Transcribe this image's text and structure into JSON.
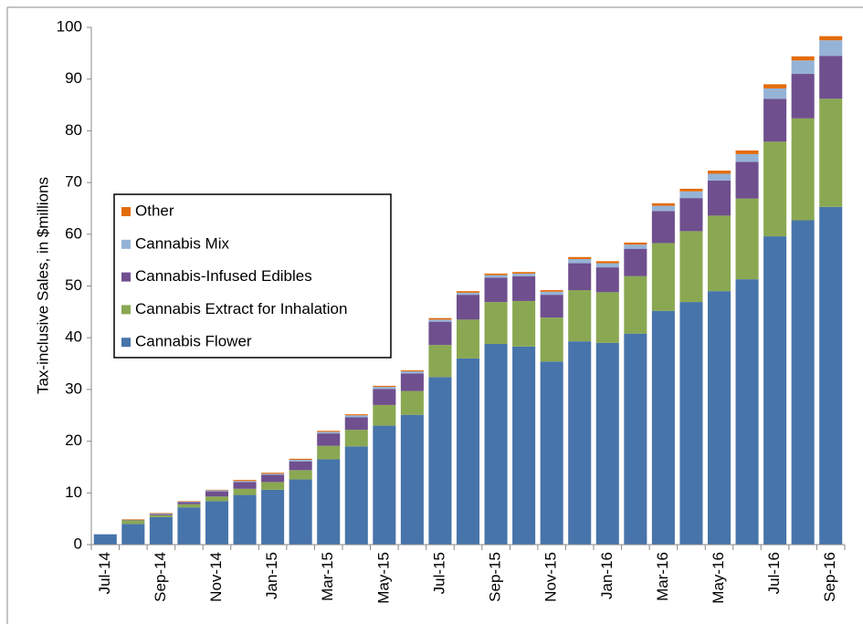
{
  "chart_data": {
    "type": "stacked_bar",
    "y_label": "Tax-inclusive Sales, in $millions",
    "categories": [
      "Jul-14",
      null,
      "Sep-14",
      null,
      "Nov-14",
      null,
      "Jan-15",
      null,
      "Mar-15",
      null,
      "May-15",
      null,
      "Jul-15",
      null,
      "Sep-15",
      null,
      "Nov-15",
      null,
      "Jan-16",
      null,
      "Mar-16",
      null,
      "May-16",
      null,
      "Jul-16",
      null,
      "Sep-16"
    ],
    "series": [
      {
        "name": "Cannabis Flower",
        "color": "#4774aa",
        "values": [
          2.0,
          4.0,
          5.3,
          7.2,
          8.4,
          9.6,
          10.6,
          12.6,
          16.5,
          19.0,
          23.0,
          25.1,
          32.4,
          36.0,
          38.8,
          38.3,
          35.4,
          39.3,
          39.0,
          40.8,
          45.2,
          46.9,
          49.0,
          51.3,
          59.6,
          62.7,
          65.3
        ]
      },
      {
        "name": "Cannabis Extract for Inhalation",
        "color": "#8aa852",
        "values": [
          0,
          0.7,
          0.4,
          0.6,
          0.9,
          1.2,
          1.5,
          1.8,
          2.6,
          3.2,
          4.0,
          4.6,
          6.2,
          7.5,
          8.1,
          8.8,
          8.5,
          9.9,
          9.8,
          11.1,
          13.1,
          13.7,
          14.6,
          15.6,
          18.3,
          19.7,
          20.9
        ]
      },
      {
        "name": "Cannabis-Infused Edibles",
        "color": "#6f4f8e",
        "values": [
          0,
          0.1,
          0.2,
          0.4,
          1.0,
          1.3,
          1.4,
          1.7,
          2.4,
          2.4,
          3.1,
          3.4,
          4.5,
          4.8,
          4.7,
          4.8,
          4.4,
          5.2,
          4.8,
          5.3,
          6.2,
          6.4,
          6.8,
          7.1,
          8.3,
          8.6,
          8.3
        ]
      },
      {
        "name": "Cannabis Mix",
        "color": "#95b3d7",
        "values": [
          0,
          0,
          0.1,
          0.1,
          0.2,
          0.2,
          0.2,
          0.3,
          0.3,
          0.4,
          0.4,
          0.4,
          0.4,
          0.4,
          0.5,
          0.5,
          0.6,
          0.8,
          0.8,
          0.8,
          1.0,
          1.3,
          1.3,
          1.5,
          2.0,
          2.6,
          3.0
        ]
      },
      {
        "name": "Other",
        "color": "#e36c0a",
        "values": [
          0,
          0.1,
          0.1,
          0.1,
          0.1,
          0.2,
          0.2,
          0.2,
          0.2,
          0.2,
          0.2,
          0.2,
          0.3,
          0.3,
          0.3,
          0.3,
          0.3,
          0.4,
          0.4,
          0.4,
          0.5,
          0.5,
          0.6,
          0.7,
          0.8,
          0.8,
          0.8
        ]
      }
    ],
    "ylim": [
      0,
      100
    ],
    "yticks": [
      0,
      10,
      20,
      30,
      40,
      50,
      60,
      70,
      80,
      90,
      100
    ]
  }
}
